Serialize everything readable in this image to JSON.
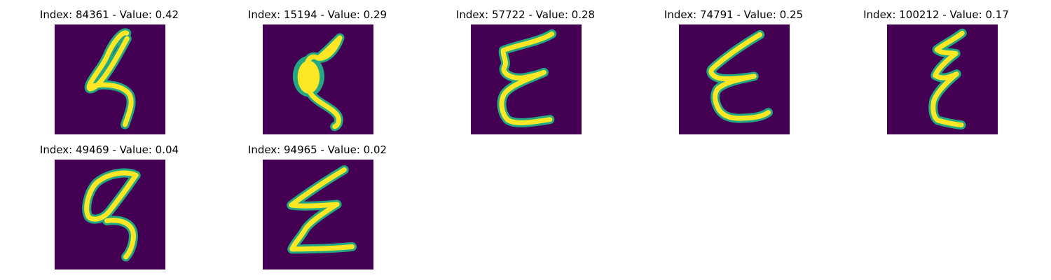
{
  "panels": [
    {
      "title": "Index: 84361 - Value: 0.42"
    },
    {
      "title": "Index: 15194 - Value: 0.29"
    },
    {
      "title": "Index: 57722 - Value: 0.28"
    },
    {
      "title": "Index: 74791 - Value: 0.25"
    },
    {
      "title": "Index: 100212 - Value: 0.17"
    },
    {
      "title": "Index: 49469 - Value: 0.04"
    },
    {
      "title": "Index: 94965 - Value: 0.02"
    }
  ],
  "colors": {
    "image_background": "#440154",
    "stroke_edge": "#24a884",
    "stroke_core": "#fde725"
  }
}
